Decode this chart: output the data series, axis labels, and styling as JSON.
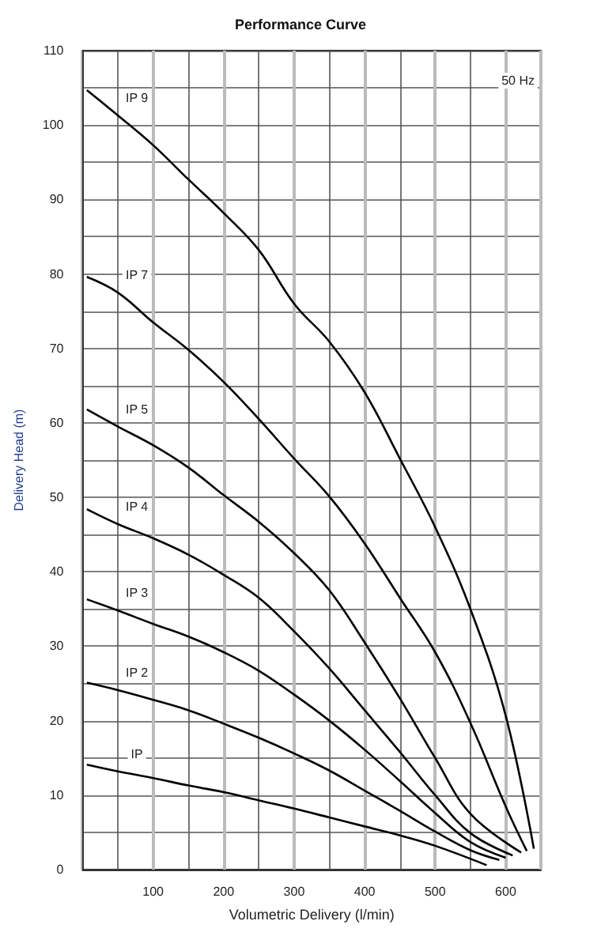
{
  "chart_data": {
    "type": "line",
    "title": "Performance Curve",
    "xlabel": "Volumetric Delivery (l/min)",
    "ylabel": "Delivery Head (m)",
    "annotations": [
      "50 Hz"
    ],
    "xlim": [
      0,
      650
    ],
    "xticks": [
      100,
      200,
      300,
      400,
      500,
      600
    ],
    "ylim": [
      0,
      110
    ],
    "yticks": [
      0,
      10,
      20,
      30,
      40,
      50,
      60,
      70,
      80,
      90,
      100,
      110
    ],
    "grid": true,
    "legend": false,
    "marker": "none",
    "line_style": "solid",
    "series": [
      {
        "name": "IP 9",
        "color": "#000000",
        "x": [
          6,
          50,
          100,
          150,
          200,
          250,
          300,
          350,
          400,
          450,
          500,
          550,
          600,
          640
        ],
        "values": [
          104.7,
          101.3,
          97.3,
          92.7,
          88.2,
          83.2,
          76,
          70.9,
          64.1,
          55.2,
          46,
          35,
          20.7,
          2.8
        ]
      },
      {
        "name": "IP 7",
        "color": "#000000",
        "x": [
          6,
          50,
          100,
          150,
          200,
          250,
          300,
          350,
          400,
          450,
          500,
          550,
          600,
          630
        ],
        "values": [
          79.6,
          77.5,
          73.5,
          69.8,
          65.5,
          60.5,
          55.2,
          50.1,
          43.8,
          36.5,
          29.2,
          19.7,
          8.5,
          2.5
        ]
      },
      {
        "name": "IP 5",
        "color": "#000000",
        "x": [
          6,
          50,
          100,
          150,
          200,
          250,
          300,
          350,
          400,
          450,
          500,
          550,
          622
        ],
        "values": [
          61.8,
          59.5,
          57,
          54,
          50.3,
          46.7,
          42.5,
          37.5,
          30.5,
          23,
          15,
          7.5,
          2.3
        ]
      },
      {
        "name": "IP 4",
        "color": "#000000",
        "x": [
          6,
          50,
          100,
          150,
          200,
          250,
          300,
          350,
          400,
          450,
          500,
          550,
          610
        ],
        "values": [
          48.4,
          46.4,
          44.5,
          42.3,
          39.6,
          36.5,
          32,
          27,
          21.4,
          15.8,
          10,
          4.9,
          1.9
        ]
      },
      {
        "name": "IP 3",
        "color": "#000000",
        "x": [
          6,
          50,
          100,
          150,
          200,
          250,
          300,
          350,
          400,
          450,
          500,
          550,
          600
        ],
        "values": [
          36.3,
          34.8,
          33,
          31.3,
          29.2,
          26.7,
          23.5,
          20,
          16.1,
          11.9,
          7.6,
          3.7,
          1.6
        ]
      },
      {
        "name": "IP 2",
        "color": "#000000",
        "x": [
          6,
          50,
          100,
          150,
          200,
          250,
          300,
          350,
          400,
          450,
          500,
          550,
          591
        ],
        "values": [
          25.1,
          24.1,
          22.8,
          21.4,
          19.6,
          17.7,
          15.6,
          13.3,
          10.6,
          7.9,
          5.1,
          2.6,
          1.3
        ]
      },
      {
        "name": "IP",
        "color": "#000000",
        "x": [
          6,
          50,
          100,
          150,
          200,
          250,
          300,
          350,
          400,
          450,
          500,
          573
        ],
        "values": [
          14.1,
          13.2,
          12.3,
          11.3,
          10.4,
          9.3,
          8.2,
          7,
          5.8,
          4.6,
          3.2,
          0.6
        ]
      }
    ]
  }
}
